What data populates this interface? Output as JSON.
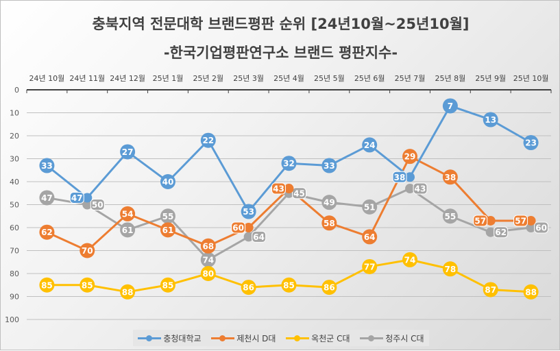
{
  "chart_data": {
    "type": "line",
    "title": "충북지역 전문대학 브랜드평판 순위 [24년10월~25년10월]",
    "subtitle": "-한국기업평판연구소 브랜드 평판지수-",
    "categories": [
      "24년 10월",
      "24년 11월",
      "24년 12월",
      "25년 1월",
      "25년 2월",
      "25년 3월",
      "25년 4월",
      "25년 5월",
      "25년 6월",
      "25년 7월",
      "25년 8월",
      "25년 9월",
      "25년 10월"
    ],
    "x_axis_position": "top",
    "y_reversed": true,
    "ylim": [
      0,
      100
    ],
    "yticks": [
      0,
      10,
      20,
      30,
      40,
      50,
      60,
      70,
      80,
      90,
      100
    ],
    "grid": true,
    "legend": "bottom",
    "series": [
      {
        "name": "충청대학교",
        "color": "#5b9bd5",
        "values": [
          33,
          47,
          27,
          40,
          22,
          53,
          32,
          33,
          24,
          38,
          7,
          13,
          23
        ]
      },
      {
        "name": "제천시 D대",
        "color": "#ed7d31",
        "values": [
          62,
          70,
          54,
          61,
          68,
          60,
          43,
          58,
          64,
          29,
          38,
          57,
          57
        ]
      },
      {
        "name": "옥천군 C대",
        "color": "#ffc000",
        "values": [
          85,
          85,
          88,
          85,
          80,
          86,
          85,
          86,
          77,
          74,
          78,
          87,
          88
        ]
      },
      {
        "name": "청주시 C대",
        "color": "#a5a5a5",
        "values": [
          47,
          50,
          61,
          55,
          74,
          64,
          45,
          49,
          51,
          43,
          55,
          62,
          60
        ]
      }
    ]
  }
}
